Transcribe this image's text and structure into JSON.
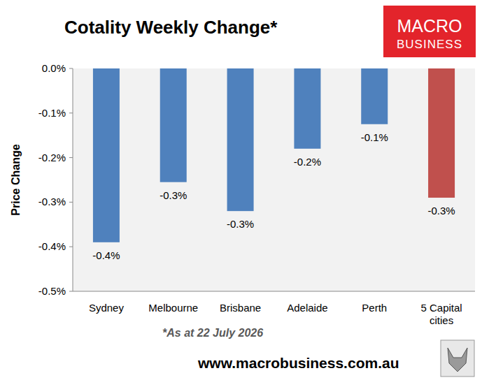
{
  "chart_data": {
    "type": "bar",
    "title": "Cotality Weekly Change*",
    "y_label": "Price Change",
    "categories": [
      "Sydney",
      "Melbourne",
      "Brisbane",
      "Adelaide",
      "Perth",
      "5 Capital cities"
    ],
    "values": [
      -0.39,
      -0.255,
      -0.32,
      -0.18,
      -0.125,
      -0.29
    ],
    "value_labels": [
      "-0.4%",
      "-0.3%",
      "-0.3%",
      "-0.2%",
      "-0.1%",
      "-0.3%"
    ],
    "colors": [
      "#4f81bd",
      "#4f81bd",
      "#4f81bd",
      "#4f81bd",
      "#4f81bd",
      "#c0504d"
    ],
    "ylim": [
      -0.5,
      0
    ],
    "yticks": [
      {
        "value": 0,
        "label": "0.0%"
      },
      {
        "value": -0.1,
        "label": "-0.1%"
      },
      {
        "value": -0.2,
        "label": "-0.2%"
      },
      {
        "value": -0.3,
        "label": "-0.3%"
      },
      {
        "value": -0.4,
        "label": "-0.4%"
      },
      {
        "value": -0.5,
        "label": "-0.5%"
      }
    ],
    "grid": false,
    "data_labels": true,
    "note": "*As at 22 July 2026",
    "source": "www.macrobusiness.com.au",
    "logo": [
      "MACRO",
      "BUSINESS"
    ]
  }
}
